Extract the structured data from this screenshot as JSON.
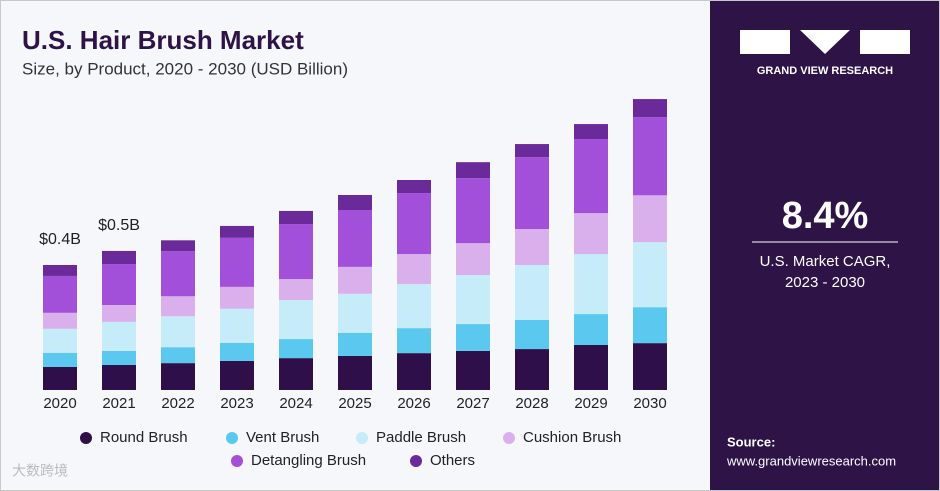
{
  "chart_data": {
    "type": "stacked_bar",
    "title": "U.S. Hair Brush Market",
    "subtitle": "Size, by Product, 2020 - 2030 (USD Billion)",
    "categories": [
      "2020",
      "2021",
      "2022",
      "2023",
      "2024",
      "2025",
      "2026",
      "2027",
      "2028",
      "2029",
      "2030"
    ],
    "series": [
      {
        "name": "Round Brush",
        "color": "#2e0f4a",
        "values": [
          0.074,
          0.08,
          0.086,
          0.093,
          0.102,
          0.109,
          0.118,
          0.125,
          0.131,
          0.144,
          0.15
        ]
      },
      {
        "name": "Vent Brush",
        "color": "#5bc8f0",
        "values": [
          0.045,
          0.045,
          0.051,
          0.058,
          0.061,
          0.074,
          0.08,
          0.086,
          0.093,
          0.099,
          0.115
        ]
      },
      {
        "name": "Paddle Brush",
        "color": "#c5ecf8",
        "values": [
          0.077,
          0.093,
          0.099,
          0.109,
          0.125,
          0.125,
          0.141,
          0.157,
          0.176,
          0.192,
          0.208
        ]
      },
      {
        "name": "Cushion Brush",
        "color": "#d9b0ec",
        "values": [
          0.051,
          0.054,
          0.064,
          0.07,
          0.067,
          0.086,
          0.096,
          0.102,
          0.115,
          0.131,
          0.15
        ]
      },
      {
        "name": "Detangling Brush",
        "color": "#a24fd9",
        "values": [
          0.118,
          0.131,
          0.144,
          0.157,
          0.176,
          0.182,
          0.195,
          0.208,
          0.23,
          0.237,
          0.25
        ]
      },
      {
        "name": "Others",
        "color": "#6a2a9a",
        "values": [
          0.035,
          0.042,
          0.035,
          0.038,
          0.042,
          0.048,
          0.042,
          0.051,
          0.042,
          0.048,
          0.058
        ]
      }
    ],
    "annotations": [
      {
        "category": "2020",
        "text": "$0.4B"
      },
      {
        "category": "2021",
        "text": "$0.5B"
      }
    ]
  },
  "side_panel": {
    "brand": "GRAND VIEW RESEARCH",
    "cagr": "8.4%",
    "cagr_label_1": "U.S. Market CAGR,",
    "cagr_label_2": "2023 - 2030",
    "source_label": "Source:",
    "source_url": "www.grandviewresearch.com"
  },
  "watermark": "大数跨境"
}
